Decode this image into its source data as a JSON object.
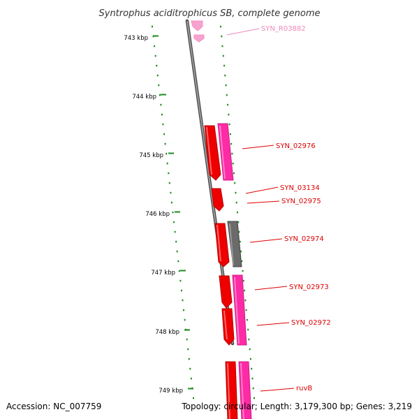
{
  "title": "Syntrophus aciditrophicus SB, complete genome",
  "footer": {
    "accession": "Accession: NC_007759",
    "summary": "Topology: circular; Length: 3,179,300 bp; Genes: 3,219"
  },
  "scale": {
    "ticks": [
      "743 kbp",
      "744 kbp",
      "745 kbp",
      "746 kbp",
      "747 kbp",
      "748 kbp",
      "749 kbp"
    ]
  },
  "colors": {
    "backbone": "#7a7a7a",
    "tick_dots": "#1f8a1f",
    "gene_red": "#ee0000",
    "gene_pink": "#ff33aa",
    "gene_grey": "#6b6b6b",
    "gene_light_pink": "#f7a3cf",
    "label_red": "#dd0000",
    "label_pink": "#ee88bb"
  },
  "genes": [
    {
      "label": "SYN_R03882",
      "color_key": "label_pink"
    },
    {
      "label": "SYN_02976",
      "color_key": "label_red"
    },
    {
      "label": "SYN_03134",
      "color_key": "label_red"
    },
    {
      "label": "SYN_02975",
      "color_key": "label_red"
    },
    {
      "label": "SYN_02974",
      "color_key": "label_red"
    },
    {
      "label": "SYN_02973",
      "color_key": "label_red"
    },
    {
      "label": "SYN_02972",
      "color_key": "label_red"
    },
    {
      "label": "ruvB",
      "color_key": "label_red"
    }
  ]
}
